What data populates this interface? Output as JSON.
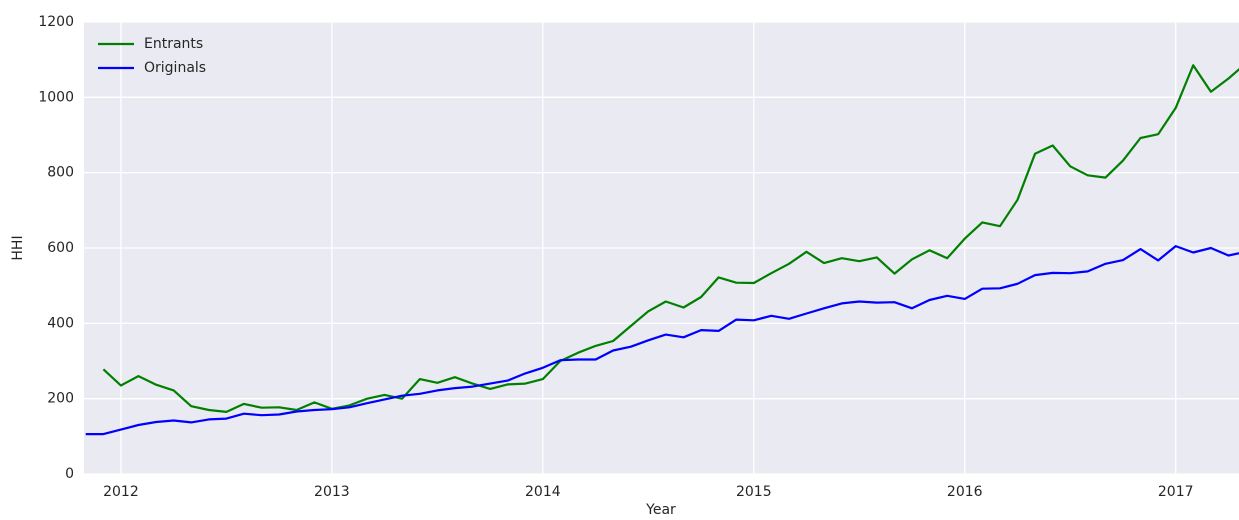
{
  "chart_data": {
    "type": "line",
    "x_label": "Year",
    "y_label": "HHI",
    "x": [
      2011.833,
      2011.917,
      2012.0,
      2012.083,
      2012.167,
      2012.25,
      2012.333,
      2012.417,
      2012.5,
      2012.583,
      2012.667,
      2012.75,
      2012.833,
      2012.917,
      2013.0,
      2013.083,
      2013.167,
      2013.25,
      2013.333,
      2013.417,
      2013.5,
      2013.583,
      2013.667,
      2013.75,
      2013.833,
      2013.917,
      2014.0,
      2014.083,
      2014.167,
      2014.25,
      2014.333,
      2014.417,
      2014.5,
      2014.583,
      2014.667,
      2014.75,
      2014.833,
      2014.917,
      2015.0,
      2015.083,
      2015.167,
      2015.25,
      2015.333,
      2015.417,
      2015.5,
      2015.583,
      2015.667,
      2015.75,
      2015.833,
      2015.917,
      2016.0,
      2016.083,
      2016.167,
      2016.25,
      2016.333,
      2016.417,
      2016.5,
      2016.583,
      2016.667,
      2016.75,
      2016.833,
      2016.917,
      2017.0,
      2017.083,
      2017.167,
      2017.25,
      2017.333
    ],
    "series": [
      {
        "name": "Entrants",
        "color": "#008000",
        "values": [
          null,
          278,
          235,
          260,
          237,
          222,
          180,
          170,
          165,
          186,
          176,
          177,
          170,
          190,
          173,
          182,
          200,
          210,
          200,
          252,
          242,
          257,
          240,
          226,
          238,
          240,
          252,
          300,
          322,
          340,
          353,
          393,
          432,
          458,
          442,
          470,
          522,
          508,
          507,
          533,
          558,
          590,
          560,
          573,
          565,
          575,
          532,
          570,
          594,
          573,
          625,
          668,
          658,
          728,
          850,
          872,
          817,
          793,
          787,
          832,
          892,
          902,
          972,
          1085,
          1015,
          1050,
          1090
        ]
      },
      {
        "name": "Originals",
        "color": "#0000ff",
        "values": [
          106,
          106,
          118,
          130,
          138,
          142,
          137,
          145,
          147,
          160,
          156,
          158,
          166,
          170,
          172,
          177,
          188,
          198,
          208,
          213,
          222,
          228,
          232,
          240,
          248,
          267,
          282,
          302,
          304,
          304,
          328,
          338,
          355,
          370,
          363,
          382,
          380,
          410,
          408,
          420,
          412,
          426,
          440,
          453,
          458,
          455,
          456,
          440,
          462,
          473,
          465,
          492,
          493,
          505,
          528,
          534,
          533,
          538,
          558,
          568,
          597,
          567,
          605,
          588,
          600,
          580,
          590
        ]
      }
    ],
    "xlim": [
      2011.825,
      2017.3
    ],
    "xticks": [
      2012,
      2013,
      2014,
      2015,
      2016,
      2017
    ],
    "ylim": [
      0,
      1200
    ],
    "yticks": [
      0,
      200,
      400,
      600,
      800,
      1000,
      1200
    ],
    "grid": true,
    "legend": "upper left"
  }
}
